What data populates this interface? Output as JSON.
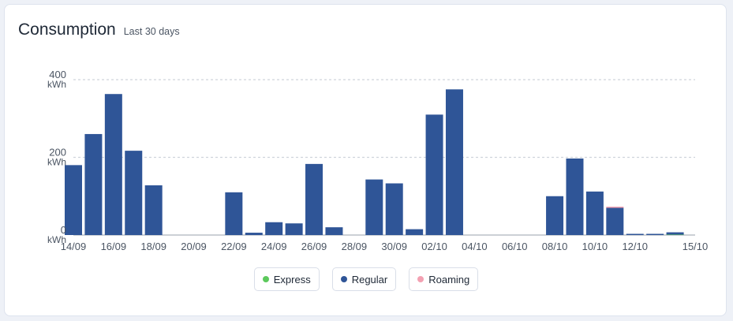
{
  "header": {
    "title": "Consumption",
    "subtitle": "Last 30 days"
  },
  "colors": {
    "express": "#5cc95c",
    "regular": "#2f5597",
    "roaming": "#f3a1b2",
    "grid": "#cfd4dc",
    "axis": "#9aa1ab"
  },
  "legend": [
    {
      "label": "Express",
      "color": "#5cc95c",
      "icon": "dot-icon"
    },
    {
      "label": "Regular",
      "color": "#2f5597",
      "icon": "dot-icon"
    },
    {
      "label": "Roaming",
      "color": "#f3a1b2",
      "icon": "dot-icon"
    }
  ],
  "chart_data": {
    "type": "bar",
    "stacked": true,
    "categories": [
      "14/09",
      "15/09",
      "16/09",
      "17/09",
      "18/09",
      "19/09",
      "20/09",
      "21/09",
      "22/09",
      "23/09",
      "24/09",
      "25/09",
      "26/09",
      "27/09",
      "28/09",
      "29/09",
      "30/09",
      "01/10",
      "02/10",
      "03/10",
      "04/10",
      "05/10",
      "06/10",
      "07/10",
      "08/10",
      "09/10",
      "10/10",
      "11/10",
      "12/10",
      "13/10",
      "14/10",
      "15/10"
    ],
    "x_tick_labels": [
      "14/09",
      "16/09",
      "18/09",
      "20/09",
      "22/09",
      "24/09",
      "26/09",
      "28/09",
      "30/09",
      "02/10",
      "04/10",
      "06/10",
      "08/10",
      "10/10",
      "12/10",
      "15/10"
    ],
    "series": [
      {
        "name": "Express",
        "values": [
          0,
          0,
          0,
          0,
          0,
          0,
          0,
          0,
          0,
          0,
          0,
          0,
          0,
          0,
          0,
          0,
          0,
          0,
          0,
          0,
          0,
          0,
          0,
          0,
          0,
          0,
          0,
          0,
          0,
          0,
          1,
          0
        ]
      },
      {
        "name": "Regular",
        "values": [
          180,
          260,
          363,
          217,
          128,
          0,
          0,
          0,
          110,
          6,
          33,
          30,
          183,
          20,
          0,
          143,
          133,
          15,
          310,
          375,
          0,
          0,
          0,
          0,
          100,
          197,
          112,
          70,
          2,
          2,
          6,
          0
        ]
      },
      {
        "name": "Roaming",
        "values": [
          0,
          0,
          0,
          0,
          0,
          0,
          0,
          0,
          0,
          0,
          0,
          0,
          0,
          0,
          0,
          0,
          0,
          0,
          0,
          0,
          0,
          0,
          0,
          0,
          0,
          0,
          0,
          1,
          0,
          0,
          0,
          0
        ]
      }
    ],
    "y_ticks": [
      {
        "value": 0,
        "label": "0",
        "unit": "kWh"
      },
      {
        "value": 200,
        "label": "200",
        "unit": "kWh"
      },
      {
        "value": 400,
        "label": "400",
        "unit": "kWh"
      }
    ],
    "ylim": [
      0,
      400
    ],
    "grid": true,
    "legend_position": "bottom-center"
  }
}
